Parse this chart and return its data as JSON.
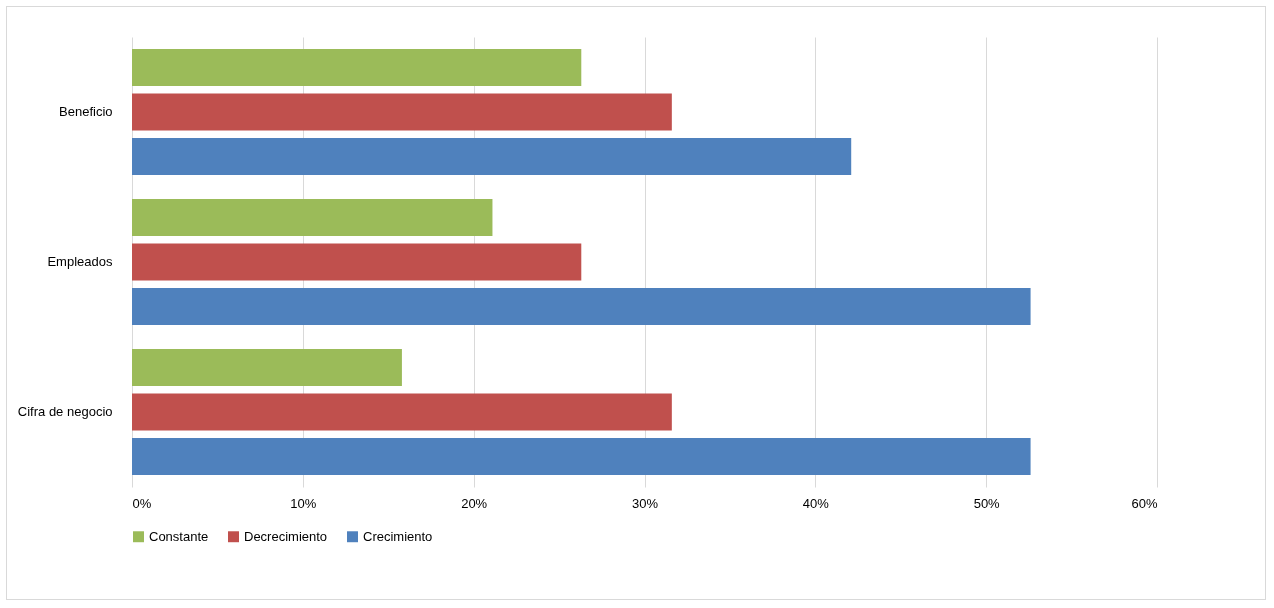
{
  "chart_data": {
    "type": "bar",
    "orientation": "horizontal",
    "categories": [
      "Beneficio",
      "Empleados",
      "Cifra de negocio"
    ],
    "series": [
      {
        "name": "Constante",
        "color": "#9bbb59",
        "values": [
          26.3,
          21.1,
          15.8
        ]
      },
      {
        "name": "Decrecimiento",
        "color": "#c0504d",
        "values": [
          31.6,
          26.3,
          31.6
        ]
      },
      {
        "name": "Crecimiento",
        "color": "#4f81bd",
        "values": [
          42.1,
          52.6,
          52.6
        ]
      }
    ],
    "xlim": [
      0,
      60
    ],
    "xticks": [
      {
        "value": 0,
        "label": "0%"
      },
      {
        "value": 10,
        "label": "10%"
      },
      {
        "value": 20,
        "label": "20%"
      },
      {
        "value": 30,
        "label": "30%"
      },
      {
        "value": 40,
        "label": "40%"
      },
      {
        "value": 50,
        "label": "50%"
      },
      {
        "value": 60,
        "label": "60%"
      }
    ],
    "grid": "x",
    "legend": "bottom"
  }
}
